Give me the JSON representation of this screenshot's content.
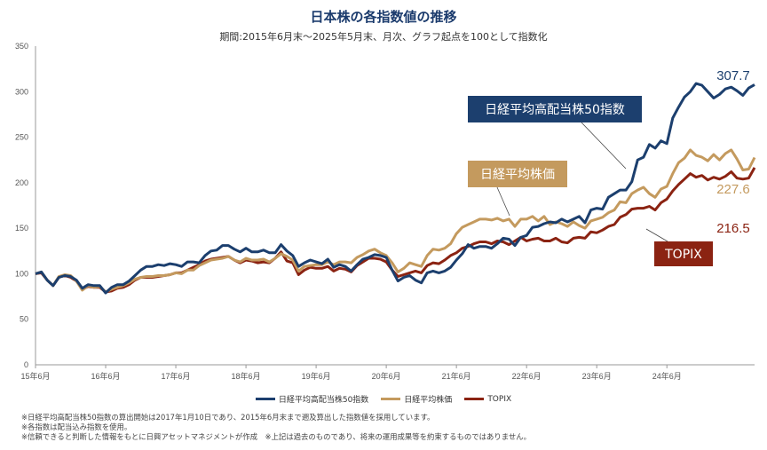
{
  "title": "日本株の各指数値の推移",
  "subtitle": "期間:2015年6月末～2025年5月末、月次、グラフ起点を100として指数化",
  "notes": [
    "※日経平均高配当株50指数の算出開始は2017年1月10日であり、2015年6月末まで遡及算出した指数値を採用しています。",
    "※各指数は配当込み指数を使用。",
    "※信頼できると判断した情報をもとに日興アセットマネジメントが作成　※上記は過去のものであり、将来の運用成果等を約束するものではありません。"
  ],
  "chart_data": {
    "type": "line",
    "title": "日本株の各指数値の推移",
    "subtitle": "期間:2015年6月末～2025年5月末、月次、グラフ起点を100として指数化",
    "ylim": [
      0,
      350
    ],
    "yticks": [
      "0",
      "50",
      "100",
      "150",
      "200",
      "250",
      "300",
      "350"
    ],
    "xtick_labels": [
      "15年6月",
      "16年6月",
      "17年6月",
      "18年6月",
      "19年6月",
      "20年6月",
      "21年6月",
      "22年6月",
      "23年6月",
      "24年6月"
    ],
    "x_start": "2015-06",
    "x_end": "2025-05",
    "legend_position": "bottom",
    "grid": false,
    "series": [
      {
        "name": "日経平均高配当株50指数",
        "color": "#1c3f6e",
        "end_label": "307.7",
        "callout": "日経平均高配当株50指数",
        "values": [
          100,
          102,
          93,
          87,
          96,
          98,
          97,
          93,
          84,
          88,
          87,
          87,
          79,
          85,
          88,
          88,
          92,
          98,
          104,
          108,
          108,
          110,
          109,
          111,
          110,
          108,
          113,
          113,
          112,
          120,
          125,
          126,
          131,
          131,
          127,
          124,
          128,
          124,
          124,
          126,
          123,
          123,
          132,
          125,
          120,
          108,
          112,
          115,
          113,
          111,
          116,
          107,
          110,
          108,
          103,
          110,
          116,
          118,
          121,
          120,
          118,
          104,
          92,
          96,
          98,
          93,
          90,
          101,
          103,
          101,
          103,
          107,
          115,
          122,
          132,
          128,
          130,
          130,
          128,
          133,
          139,
          138,
          131,
          140,
          142,
          151,
          152,
          155,
          157,
          156,
          160,
          157,
          160,
          163,
          156,
          170,
          172,
          171,
          184,
          188,
          192,
          192,
          201,
          225,
          228,
          242,
          238,
          246,
          243,
          271,
          283,
          294,
          300,
          309,
          307,
          300,
          293,
          297,
          303,
          305,
          301,
          296,
          304,
          307.7
        ],
        "end_value": 307.7
      },
      {
        "name": "日経平均株価",
        "color": "#c49a5e",
        "end_label": "227.6",
        "callout": "日経平均株価",
        "values": [
          100,
          102,
          93,
          87,
          97,
          99,
          98,
          92,
          82,
          87,
          85,
          86,
          80,
          83,
          85,
          87,
          90,
          94,
          96,
          97,
          97,
          98,
          98,
          99,
          101,
          100,
          104,
          104,
          109,
          112,
          115,
          116,
          117,
          119,
          115,
          113,
          117,
          115,
          115,
          116,
          113,
          117,
          122,
          119,
          115,
          103,
          108,
          109,
          110,
          110,
          113,
          110,
          113,
          113,
          112,
          118,
          121,
          125,
          127,
          123,
          120,
          112,
          102,
          106,
          112,
          110,
          108,
          120,
          127,
          126,
          128,
          133,
          144,
          151,
          154,
          157,
          160,
          160,
          159,
          161,
          158,
          160,
          152,
          160,
          160,
          163,
          158,
          163,
          154,
          157,
          155,
          152,
          157,
          153,
          150,
          158,
          160,
          162,
          167,
          170,
          179,
          178,
          188,
          192,
          195,
          188,
          184,
          193,
          196,
          210,
          222,
          227,
          236,
          230,
          228,
          224,
          231,
          225,
          232,
          236,
          226,
          214,
          215,
          227.6
        ],
        "end_value": 227.6
      },
      {
        "name": "TOPIX",
        "color": "#8b2312",
        "end_label": "216.5",
        "callout": "TOPIX",
        "values": [
          100,
          101,
          93,
          87,
          96,
          98,
          96,
          92,
          83,
          86,
          85,
          85,
          80,
          81,
          84,
          85,
          88,
          93,
          96,
          96,
          96,
          97,
          98,
          99,
          101,
          101,
          104,
          107,
          110,
          114,
          116,
          117,
          118,
          119,
          115,
          112,
          115,
          114,
          112,
          113,
          112,
          117,
          124,
          114,
          112,
          99,
          104,
          107,
          106,
          106,
          108,
          103,
          106,
          105,
          102,
          109,
          113,
          117,
          117,
          116,
          113,
          104,
          97,
          99,
          101,
          103,
          101,
          109,
          112,
          111,
          115,
          120,
          123,
          128,
          130,
          133,
          135,
          135,
          133,
          136,
          135,
          132,
          136,
          140,
          136,
          138,
          139,
          136,
          136,
          139,
          135,
          134,
          139,
          140,
          139,
          146,
          145,
          148,
          152,
          154,
          162,
          165,
          171,
          172,
          172,
          174,
          170,
          178,
          182,
          191,
          198,
          204,
          210,
          206,
          208,
          203,
          206,
          204,
          207,
          212,
          205,
          204,
          205,
          216.5
        ],
        "end_value": 216.5
      }
    ]
  }
}
